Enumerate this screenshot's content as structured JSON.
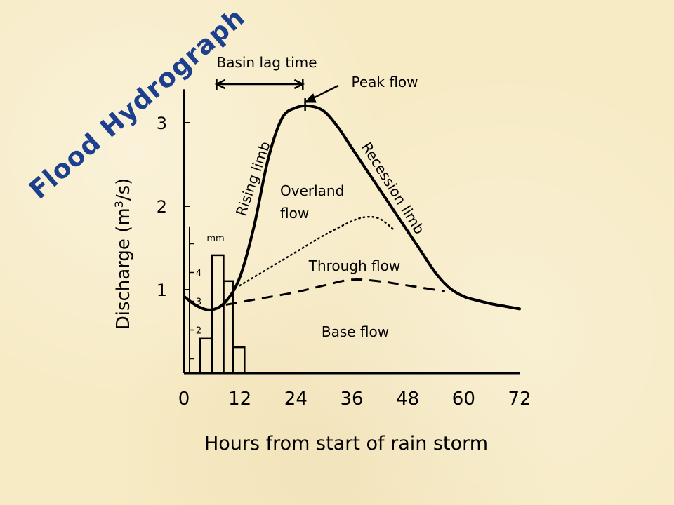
{
  "slide": {
    "title": "Flood Hydrograph",
    "title_color": "#1c3f8e",
    "background_color": "#f7ebc5"
  },
  "chart_data": {
    "type": "line",
    "xlabel": "Hours from start of rain storm",
    "ylabel_prefix": "Discharge (m",
    "ylabel_sup": "3",
    "ylabel_suffix": "/s)",
    "xlim": [
      0,
      72
    ],
    "ylim": [
      0,
      3.4
    ],
    "x_ticks": [
      0,
      12,
      24,
      36,
      48,
      60,
      72
    ],
    "y_ticks": [
      1,
      2,
      3
    ],
    "grid": false,
    "series": [
      {
        "style": "solid",
        "x": [
          0,
          3,
          6,
          9,
          12,
          15,
          18,
          21,
          24,
          27,
          30,
          33,
          36,
          39,
          42,
          45,
          48,
          51,
          54,
          57,
          60,
          63,
          66,
          69,
          72
        ],
        "y": [
          0.92,
          0.8,
          0.76,
          0.86,
          1.15,
          1.75,
          2.55,
          3.05,
          3.18,
          3.2,
          3.14,
          2.95,
          2.7,
          2.45,
          2.2,
          1.95,
          1.7,
          1.45,
          1.2,
          1.02,
          0.92,
          0.87,
          0.83,
          0.8,
          0.77
        ]
      },
      {
        "style": "dotted",
        "x": [
          12,
          18,
          24,
          30,
          36,
          39,
          42,
          45
        ],
        "y": [
          1.05,
          1.25,
          1.45,
          1.65,
          1.82,
          1.87,
          1.85,
          1.72
        ]
      },
      {
        "style": "dashed",
        "x": [
          9,
          15,
          24,
          30,
          36,
          42,
          48,
          56
        ],
        "y": [
          0.82,
          0.88,
          0.97,
          1.05,
          1.12,
          1.1,
          1.05,
          0.98
        ]
      }
    ],
    "rainfall_bars": {
      "unit_label": "mm",
      "scale_ticks": [
        "2",
        "3",
        "4"
      ],
      "scale_min": 1,
      "scale_max": 5,
      "values": [
        1.7,
        4.6,
        3.7,
        1.4
      ],
      "hour_edges": [
        3.5,
        6,
        8.5,
        10.5,
        13
      ]
    },
    "annotations": {
      "basin_lag_time": "Basin lag time",
      "peak_flow": "Peak flow",
      "rising_limb": "Rising limb",
      "recession_limb": "Recession limb",
      "overland_flow_line1": "Overland",
      "overland_flow_line2": "flow",
      "through_flow": "Through flow",
      "base_flow": "Base flow"
    }
  }
}
